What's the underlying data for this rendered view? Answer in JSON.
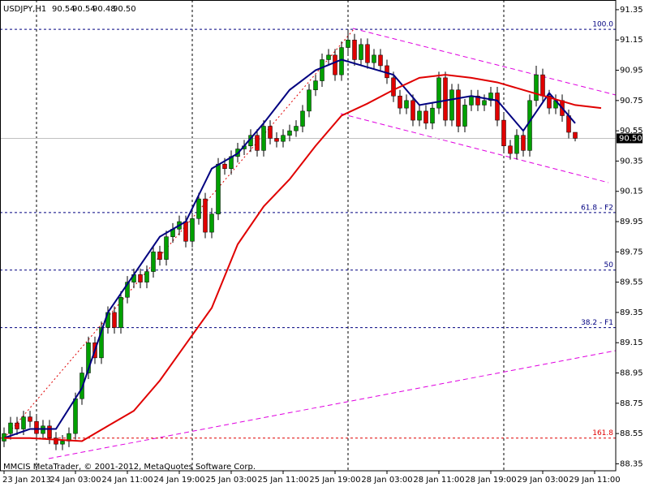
{
  "chart_data": {
    "type": "candlestick",
    "title": "USDJPY,H1",
    "header_values": [
      "90.54",
      "90.54",
      "90.48",
      "90.50"
    ],
    "footer": "MMCIS MetaTrader, © 2001-2012, MetaQuotes Software Corp.",
    "up_color": "#00a000",
    "down_color": "#e00000",
    "wick_color": "#000000",
    "open": [
      88.5,
      88.55,
      88.62,
      88.58,
      88.66,
      88.63,
      88.55,
      88.6,
      88.52,
      88.48,
      88.5,
      88.55,
      88.78,
      88.95,
      89.15,
      89.05,
      89.25,
      89.35,
      89.25,
      89.45,
      89.55,
      89.6,
      89.55,
      89.62,
      89.75,
      89.7,
      89.85,
      89.9,
      89.95,
      89.82,
      89.97,
      90.1,
      89.88,
      90.0,
      90.33,
      90.3,
      90.38,
      90.43,
      90.45,
      90.52,
      90.42,
      90.58,
      90.5,
      90.48,
      90.52,
      90.55,
      90.58,
      90.68,
      90.82,
      90.88,
      91.02,
      91.05,
      90.92,
      91.1,
      91.15,
      91.02,
      91.12,
      91.0,
      91.05,
      90.98,
      90.9,
      90.78,
      90.7,
      90.75,
      90.62,
      90.68,
      90.6,
      90.7,
      90.9,
      90.62,
      90.82,
      90.58,
      90.72,
      90.78,
      90.72,
      90.75,
      90.8,
      90.62,
      90.45,
      90.4,
      90.52,
      90.42,
      90.75,
      90.92,
      90.78,
      90.7,
      90.75,
      90.65,
      90.54
    ],
    "high": [
      88.59,
      88.66,
      88.66,
      88.7,
      88.7,
      88.67,
      88.64,
      88.64,
      88.56,
      88.54,
      88.59,
      88.82,
      88.99,
      89.19,
      89.19,
      89.29,
      89.39,
      89.39,
      89.49,
      89.59,
      89.64,
      89.64,
      89.66,
      89.79,
      89.79,
      89.89,
      89.94,
      89.99,
      89.99,
      90.01,
      90.14,
      90.14,
      90.04,
      90.37,
      90.37,
      90.42,
      90.47,
      90.49,
      90.56,
      90.56,
      90.62,
      90.62,
      90.54,
      90.56,
      90.59,
      90.62,
      90.72,
      90.86,
      90.92,
      91.06,
      91.09,
      91.09,
      91.14,
      91.22,
      91.19,
      91.16,
      91.16,
      91.09,
      91.09,
      91.02,
      90.94,
      90.82,
      90.79,
      90.79,
      90.72,
      90.72,
      90.74,
      90.94,
      90.94,
      90.86,
      90.86,
      90.76,
      90.82,
      90.82,
      90.79,
      90.84,
      90.84,
      90.66,
      90.49,
      90.56,
      90.56,
      90.79,
      90.98,
      90.96,
      90.82,
      90.79,
      90.79,
      90.69,
      90.54
    ],
    "low": [
      88.46,
      88.51,
      88.54,
      88.54,
      88.59,
      88.51,
      88.51,
      88.48,
      88.44,
      88.44,
      88.46,
      88.51,
      88.74,
      88.91,
      89.01,
      89.01,
      89.21,
      89.21,
      89.21,
      89.41,
      89.51,
      89.51,
      89.51,
      89.58,
      89.66,
      89.66,
      89.81,
      89.86,
      89.78,
      89.78,
      89.93,
      89.84,
      89.84,
      89.96,
      90.26,
      90.26,
      90.34,
      90.39,
      90.41,
      90.38,
      90.38,
      90.46,
      90.44,
      90.44,
      90.48,
      90.51,
      90.54,
      90.64,
      90.78,
      90.84,
      90.98,
      90.88,
      90.88,
      91.06,
      90.98,
      90.98,
      90.96,
      90.96,
      90.94,
      90.86,
      90.74,
      90.66,
      90.66,
      90.58,
      90.58,
      90.56,
      90.56,
      90.66,
      90.58,
      90.58,
      90.54,
      90.54,
      90.68,
      90.68,
      90.68,
      90.71,
      90.58,
      90.41,
      90.36,
      90.36,
      90.38,
      90.38,
      90.71,
      90.74,
      90.66,
      90.66,
      90.61,
      90.5,
      90.48
    ],
    "close": [
      88.55,
      88.62,
      88.58,
      88.66,
      88.63,
      88.55,
      88.6,
      88.52,
      88.48,
      88.5,
      88.55,
      88.78,
      88.95,
      89.15,
      89.05,
      89.25,
      89.35,
      89.25,
      89.45,
      89.55,
      89.6,
      89.55,
      89.62,
      89.75,
      89.7,
      89.85,
      89.9,
      89.95,
      89.82,
      89.97,
      90.1,
      89.88,
      90.0,
      90.33,
      90.3,
      90.38,
      90.43,
      90.45,
      90.52,
      90.42,
      90.58,
      90.5,
      90.48,
      90.52,
      90.55,
      90.58,
      90.68,
      90.82,
      90.88,
      91.02,
      91.05,
      90.92,
      91.1,
      91.15,
      91.02,
      91.12,
      91.0,
      91.05,
      90.98,
      90.9,
      90.78,
      90.7,
      90.75,
      90.62,
      90.68,
      90.6,
      90.7,
      90.9,
      90.62,
      90.82,
      90.58,
      90.72,
      90.78,
      90.72,
      90.75,
      90.8,
      90.62,
      90.45,
      90.4,
      90.52,
      90.42,
      90.75,
      90.92,
      90.78,
      90.7,
      90.75,
      90.65,
      90.54,
      90.5
    ],
    "lines": [
      {
        "color": "#000080",
        "x": [
          0,
          4,
          8,
          12,
          16,
          20,
          24,
          28,
          32,
          36,
          40,
          44,
          48,
          52,
          56,
          60,
          64,
          68,
          72,
          76,
          80,
          84,
          88
        ],
        "values": [
          88.52,
          88.58,
          88.58,
          88.85,
          89.35,
          89.6,
          89.85,
          89.95,
          90.3,
          90.4,
          90.6,
          90.82,
          90.95,
          91.02,
          90.97,
          90.92,
          90.72,
          90.75,
          90.78,
          90.75,
          90.55,
          90.8,
          90.6
        ]
      },
      {
        "color": "#e00000",
        "x": [
          0,
          4,
          8,
          12,
          16,
          20,
          24,
          28,
          32,
          36,
          40,
          44,
          48,
          52,
          56,
          60,
          64,
          68,
          72,
          76,
          80,
          84,
          88,
          92
        ],
        "values": [
          88.52,
          88.52,
          88.51,
          88.5,
          88.6,
          88.7,
          88.9,
          89.14,
          89.38,
          89.8,
          90.05,
          90.23,
          90.45,
          90.65,
          90.73,
          90.82,
          90.9,
          90.92,
          90.9,
          90.87,
          90.82,
          90.77,
          90.72,
          90.7
        ]
      }
    ],
    "fib_levels": [
      {
        "value": 91.22,
        "label": "100.0",
        "color": "#000080"
      },
      {
        "value": 90.01,
        "label": "61.8 - F2",
        "color": "#000080"
      },
      {
        "value": 89.63,
        "label": "50",
        "color": "#000080"
      },
      {
        "value": 89.25,
        "label": "38.2 - F1",
        "color": "#000080"
      },
      {
        "value": 88.52,
        "label": "161.8",
        "color": "#e00000"
      }
    ],
    "current_price": {
      "value": 90.5,
      "label": "90.50"
    },
    "xlim": [
      -0.625,
      94.25
    ],
    "xticks": [
      {
        "value": 0,
        "label": "23 Jan 2013"
      },
      {
        "value": 11,
        "label": "24 Jan 03:00"
      },
      {
        "value": 19,
        "label": "24 Jan 11:00"
      },
      {
        "value": 27,
        "label": "24 Jan 19:00"
      },
      {
        "value": 35,
        "label": "25 Jan 03:00"
      },
      {
        "value": 43,
        "label": "25 Jan 11:00"
      },
      {
        "value": 51,
        "label": "25 Jan 19:00"
      },
      {
        "value": 59,
        "label": "28 Jan 03:00"
      },
      {
        "value": 67,
        "label": "28 Jan 11:00"
      },
      {
        "value": 75,
        "label": "28 Jan 19:00"
      },
      {
        "value": 83,
        "label": "29 Jan 03:00"
      },
      {
        "value": 91,
        "label": "29 Jan 11:00"
      }
    ],
    "ylim": [
      88.304,
      91.414
    ],
    "yticks": [
      91.35,
      91.15,
      90.95,
      90.75,
      90.55,
      90.35,
      90.15,
      89.95,
      89.75,
      89.55,
      89.35,
      89.15,
      88.95,
      88.75,
      88.55,
      88.35
    ]
  }
}
